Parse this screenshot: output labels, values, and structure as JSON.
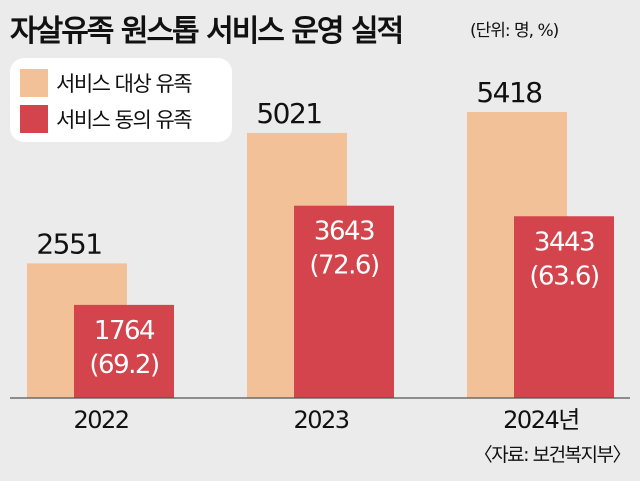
{
  "title": "자살유족 원스톱 서비스 운영 실적",
  "unit": "(단위: 명, %)",
  "source": "〈자료: 보건복지부〉",
  "chart_data": {
    "type": "bar",
    "categories": [
      "2022",
      "2023",
      "2024년"
    ],
    "series": [
      {
        "name": "서비스 대상 유족",
        "values": [
          2551,
          5021,
          5418
        ],
        "color": "#f2c198"
      },
      {
        "name": "서비스 동의 유족",
        "values": [
          1764,
          3643,
          3443
        ],
        "color": "#d4444c"
      }
    ],
    "consent_rate_percent": [
      "69.2",
      "72.6",
      "63.6"
    ],
    "ylim": [
      0,
      5418
    ],
    "legend_position": "top-left",
    "grid": false
  }
}
